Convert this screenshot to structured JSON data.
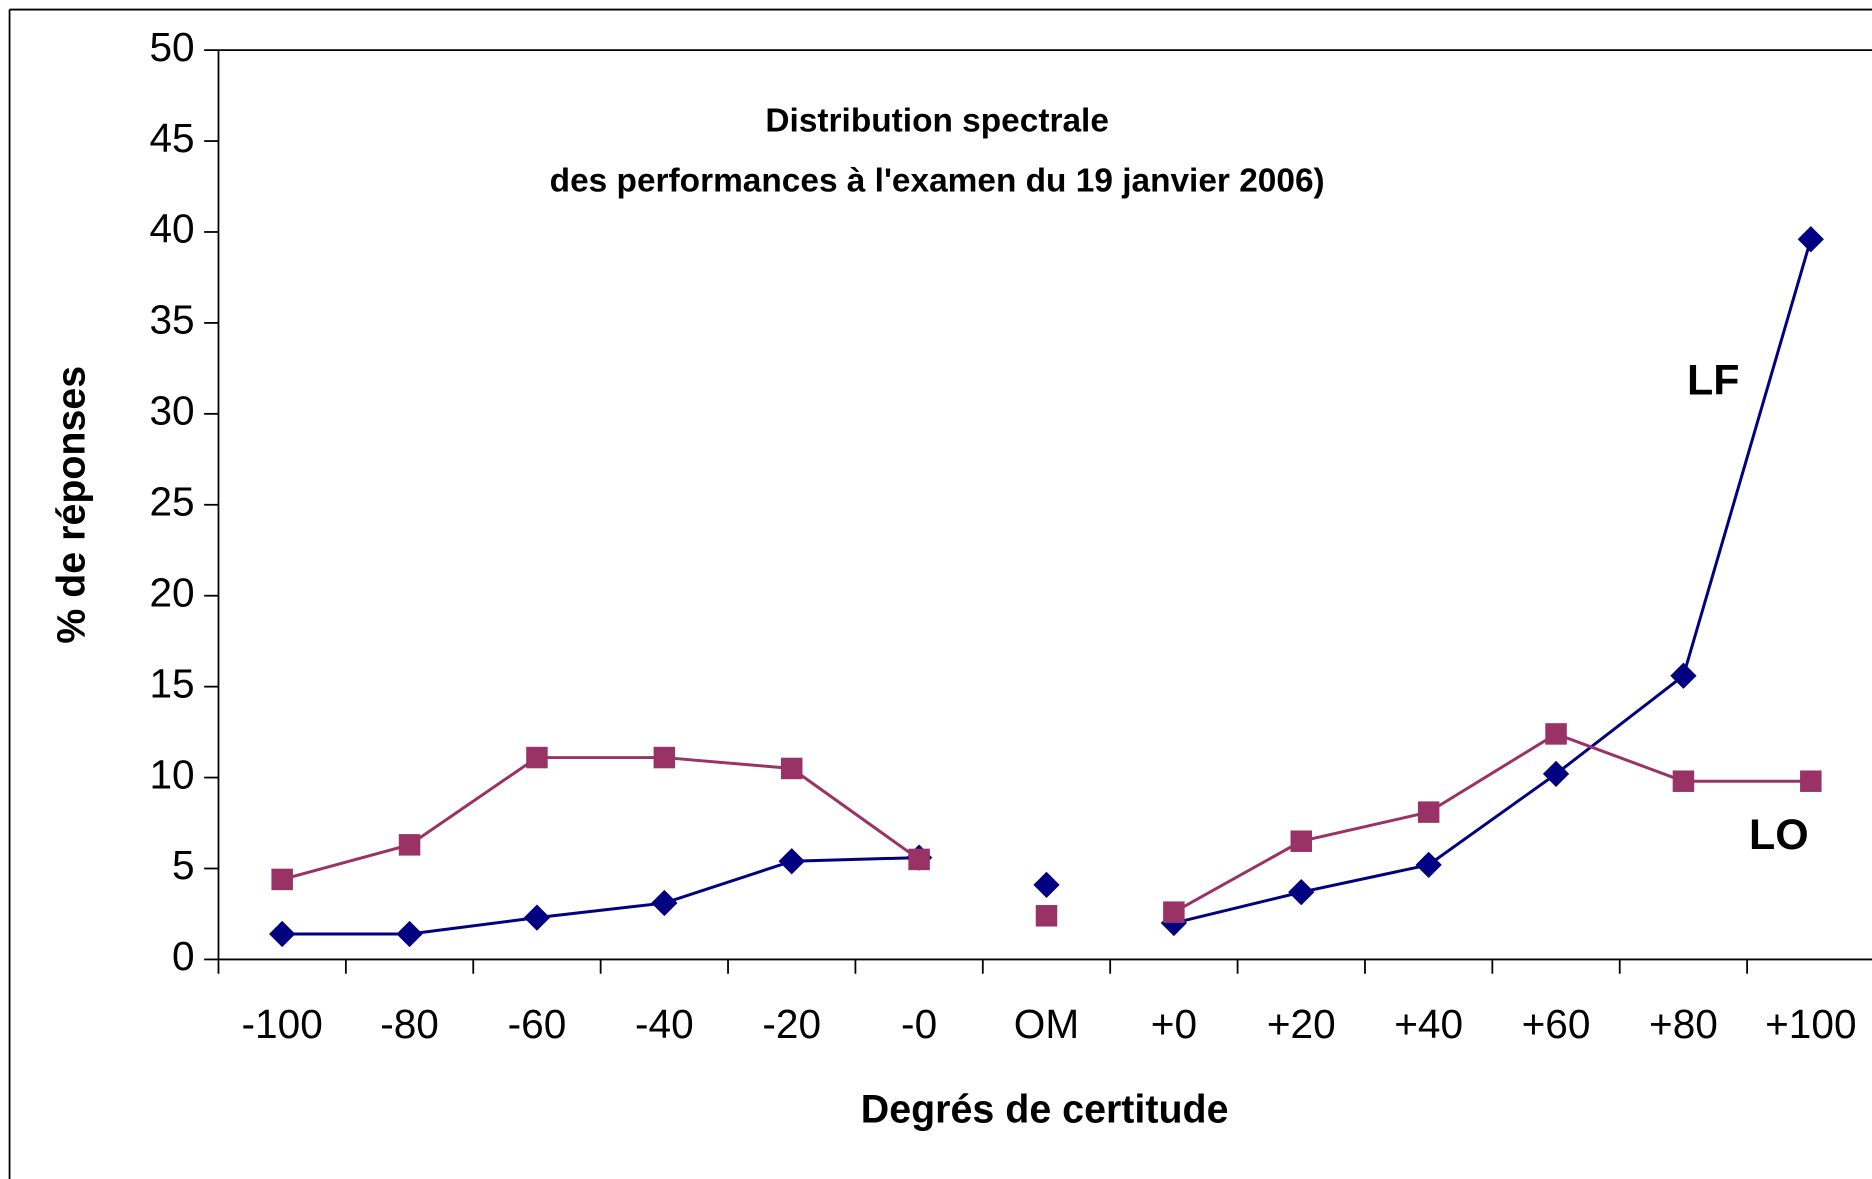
{
  "chart_data": {
    "type": "line",
    "title": [
      "Distribution spectrale",
      "des performances à l'examen du 19 janvier 2006)"
    ],
    "x_label": "Degrés de certitude",
    "y_label": "% de réponses",
    "categories": [
      "-100",
      "-80",
      "-60",
      "-40",
      "-20",
      "-0",
      "OM",
      "+0",
      "+20",
      "+40",
      "+60",
      "+80",
      "+100"
    ],
    "markers_only_categories": [
      6
    ],
    "series": [
      {
        "name": "LF",
        "color": "#000080",
        "marker": "diamond",
        "values": [
          1.4,
          1.4,
          2.3,
          3.1,
          5.4,
          5.6,
          4.1,
          2.0,
          3.7,
          5.2,
          10.2,
          15.6,
          39.6
        ]
      },
      {
        "name": "LO",
        "color": "#993366",
        "marker": "square",
        "values": [
          4.4,
          6.3,
          11.1,
          11.1,
          10.5,
          5.5,
          2.4,
          2.6,
          6.5,
          8.1,
          12.4,
          9.8,
          9.8
        ]
      }
    ],
    "ylim": [
      0,
      50
    ],
    "yticks": [
      0,
      5,
      10,
      15,
      20,
      25,
      30,
      35,
      40,
      45,
      50
    ],
    "grid": false
  }
}
